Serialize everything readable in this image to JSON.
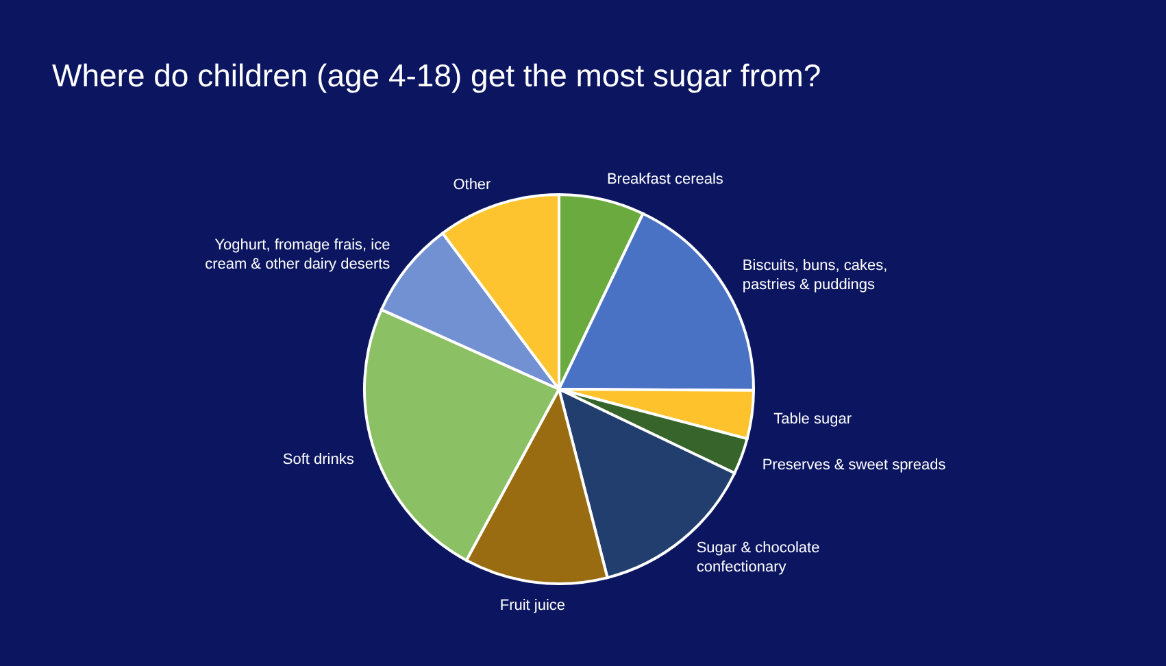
{
  "chart_data": {
    "type": "pie",
    "title": "Where do children (age 4-18) get the most sugar from?",
    "categories": [
      "Breakfast cereals",
      "Biscuits, buns, cakes, pastries & puddings",
      "Table sugar",
      "Preserves & sweet spreads",
      "Sugar & chocolate confectionary",
      "Fruit juice",
      "Soft drinks",
      "Yoghurt, fromage frais, ice cream & other dairy deserts",
      "Other"
    ],
    "values": [
      7.1,
      18.0,
      4.0,
      3.0,
      13.9,
      11.9,
      23.8,
      8.1,
      10.2
    ],
    "colors": [
      "#6aaa3f",
      "#4a72c4",
      "#fec32c",
      "#37642a",
      "#223e6e",
      "#9a6c12",
      "#8bc064",
      "#7291d2",
      "#fdc42f"
    ],
    "legend": false
  }
}
